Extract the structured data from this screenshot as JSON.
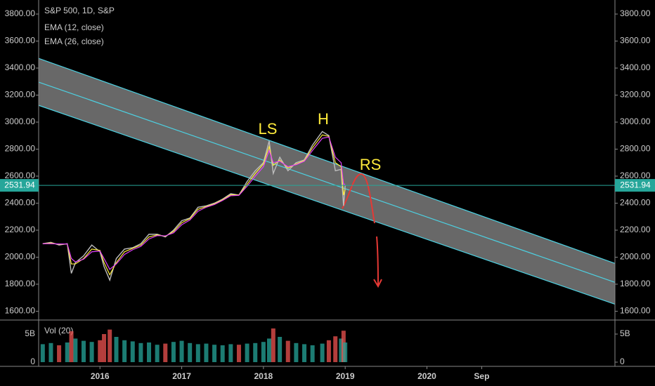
{
  "chart_data": {
    "type": "line",
    "title": "S&P 500, 1D, S&P",
    "x": [
      2015.3,
      2015.4,
      2015.5,
      2015.6,
      2015.65,
      2015.7,
      2015.8,
      2015.9,
      2016.0,
      2016.05,
      2016.12,
      2016.2,
      2016.3,
      2016.4,
      2016.5,
      2016.6,
      2016.7,
      2016.8,
      2016.9,
      2017.0,
      2017.1,
      2017.2,
      2017.3,
      2017.4,
      2017.5,
      2017.6,
      2017.7,
      2017.8,
      2017.9,
      2018.0,
      2018.07,
      2018.12,
      2018.2,
      2018.3,
      2018.4,
      2018.5,
      2018.6,
      2018.72,
      2018.8,
      2018.88,
      2018.95,
      2018.98,
      2019.0
    ],
    "series": [
      {
        "name": "S&P 500, 1D, S&P",
        "color": "#bdbdbd",
        "values": [
          2100,
          2110,
          2090,
          2100,
          1880,
          1960,
          2010,
          2090,
          2040,
          1930,
          1830,
          1990,
          2060,
          2070,
          2100,
          2170,
          2170,
          2150,
          2200,
          2270,
          2290,
          2370,
          2380,
          2400,
          2430,
          2470,
          2460,
          2560,
          2640,
          2700,
          2860,
          2620,
          2740,
          2640,
          2700,
          2720,
          2830,
          2930,
          2900,
          2640,
          2650,
          2380,
          2531.94
        ]
      },
      {
        "name": "EMA (12, close)",
        "color": "#ffeb3b",
        "values": [
          2100,
          2105,
          2095,
          2098,
          1950,
          1950,
          1990,
          2060,
          2050,
          1960,
          1870,
          1960,
          2040,
          2065,
          2090,
          2150,
          2165,
          2155,
          2190,
          2255,
          2285,
          2355,
          2375,
          2395,
          2425,
          2462,
          2460,
          2540,
          2620,
          2690,
          2820,
          2680,
          2720,
          2660,
          2690,
          2715,
          2810,
          2905,
          2895,
          2700,
          2670,
          2460,
          2500
        ]
      },
      {
        "name": "EMA (26, close)",
        "color": "#e040fb",
        "values": [
          2100,
          2100,
          2098,
          2098,
          1990,
          1965,
          1985,
          2040,
          2045,
          1990,
          1910,
          1950,
          2020,
          2055,
          2080,
          2135,
          2160,
          2158,
          2180,
          2240,
          2275,
          2340,
          2370,
          2390,
          2420,
          2455,
          2458,
          2525,
          2600,
          2670,
          2790,
          2700,
          2710,
          2670,
          2685,
          2710,
          2790,
          2880,
          2890,
          2740,
          2700,
          2540,
          2540
        ]
      }
    ],
    "last_price": 2531.94,
    "xlim": [
      2015.25,
      2022.3
    ],
    "xticks": [
      {
        "value": 2016,
        "label": "2016"
      },
      {
        "value": 2017,
        "label": "2017"
      },
      {
        "value": 2018,
        "label": "2018"
      },
      {
        "value": 2019,
        "label": "2019"
      },
      {
        "value": 2020,
        "label": "2020"
      },
      {
        "value": 2020.67,
        "label": "Sep"
      }
    ],
    "ylim": [
      1540,
      3904
    ],
    "yticks": [
      {
        "value": 1600,
        "label": "1600.00"
      },
      {
        "value": 1800,
        "label": "1800.00"
      },
      {
        "value": 2000,
        "label": "2000.00"
      },
      {
        "value": 2200,
        "label": "2200.00"
      },
      {
        "value": 2400,
        "label": "2400.00"
      },
      {
        "value": 2600,
        "label": "2600.00"
      },
      {
        "value": 2800,
        "label": "2800.00"
      },
      {
        "value": 3000,
        "label": "3000.00"
      },
      {
        "value": 3200,
        "label": "3200.00"
      },
      {
        "value": 3400,
        "label": "3400.00"
      },
      {
        "value": 3600,
        "label": "3600.00"
      },
      {
        "value": 3800,
        "label": "3800.00"
      }
    ],
    "channel": {
      "color": "#4dd0e1",
      "fill": "#7a7a7a",
      "x": [
        2015.25,
        2022.3
      ],
      "upper": [
        3472,
        1954
      ],
      "middle": [
        3296,
        1814
      ],
      "lower": [
        3124,
        1652
      ]
    },
    "annotations": [
      "LS",
      "H",
      "RS"
    ],
    "volume": {
      "name": "Vol (20)",
      "up_color": "#26a69a",
      "down_color": "#ef5350",
      "values": [
        3200000000,
        3400000000,
        3000000000,
        3500000000,
        5500000000,
        4200000000,
        3800000000,
        3600000000,
        3900000000,
        5000000000,
        5800000000,
        4500000000,
        3900000000,
        3700000000,
        3400000000,
        3500000000,
        3100000000,
        3300000000,
        3600000000,
        3800000000,
        3400000000,
        3200000000,
        3300000000,
        3100000000,
        3000000000,
        3200000000,
        3100000000,
        3300000000,
        3400000000,
        3600000000,
        4200000000,
        6000000000,
        4500000000,
        3800000000,
        3400000000,
        3200000000,
        3000000000,
        3300000000,
        3900000000,
        4600000000,
        4200000000,
        5600000000,
        3500000000
      ],
      "ylim": [
        0,
        7000000000
      ],
      "yticks": [
        0,
        {
          "value": 5000000000,
          "label": "5B"
        }
      ]
    }
  }
}
